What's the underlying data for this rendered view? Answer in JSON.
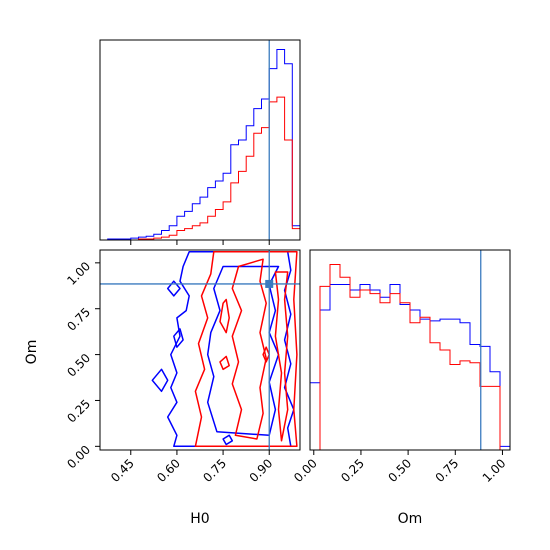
{
  "chart_data": {
    "type": "corner",
    "truth": {
      "H0": 0.9,
      "Om": 0.885
    },
    "truth_color": "#3b7bbf",
    "series_colors": [
      "#0000ff",
      "#ff0000"
    ],
    "panels": {
      "hist_H0": {
        "type": "step-histogram",
        "xlabel": "H0",
        "xlim": [
          0.35,
          1.0
        ],
        "ylim": [
          0,
          210
        ],
        "bin_edges": [
          0.35,
          0.375,
          0.4,
          0.425,
          0.45,
          0.475,
          0.5,
          0.525,
          0.55,
          0.575,
          0.6,
          0.625,
          0.65,
          0.675,
          0.7,
          0.725,
          0.75,
          0.775,
          0.8,
          0.825,
          0.85,
          0.875,
          0.9,
          0.925,
          0.95,
          0.975,
          1.0
        ],
        "series": [
          {
            "color": "blue",
            "values": [
              0,
              1,
              1,
              1,
              2,
              3,
              4,
              6,
              10,
              15,
              25,
              30,
              38,
              45,
              55,
              62,
              70,
              100,
              105,
              120,
              138,
              148,
              180,
              200,
              185,
              15
            ]
          },
          {
            "color": "red",
            "values": [
              0,
              0,
              0,
              0,
              0,
              1,
              1,
              2,
              3,
              5,
              10,
              12,
              15,
              18,
              25,
              32,
              40,
              60,
              72,
              88,
              112,
              118,
              145,
              150,
              105,
              12
            ]
          }
        ]
      },
      "hist_Om": {
        "type": "step-histogram",
        "xlabel": "Om",
        "xlim": [
          -0.02,
          1.04
        ],
        "xticks": [
          "0.00",
          "0.25",
          "0.50",
          "0.75",
          "1.00"
        ],
        "ylim": [
          0,
          1.1
        ],
        "bin_edges": [
          -0.02,
          0.033,
          0.086,
          0.139,
          0.192,
          0.245,
          0.298,
          0.351,
          0.404,
          0.457,
          0.51,
          0.563,
          0.616,
          0.669,
          0.722,
          0.775,
          0.828,
          0.881,
          0.934,
          0.987,
          1.04
        ],
        "series": [
          {
            "color": "blue",
            "values": [
              0.37,
              0.77,
              0.91,
              0.91,
              0.88,
              0.91,
              0.88,
              0.84,
              0.91,
              0.8,
              0.77,
              0.72,
              0.71,
              0.72,
              0.72,
              0.7,
              0.58,
              0.57,
              0.43,
              0.02
            ]
          },
          {
            "color": "red",
            "values": [
              0.0,
              0.9,
              1.02,
              0.95,
              0.84,
              0.88,
              0.86,
              0.81,
              0.86,
              0.81,
              0.7,
              0.73,
              0.59,
              0.55,
              0.47,
              0.49,
              0.48,
              0.35,
              0.35,
              0.0
            ]
          }
        ]
      },
      "contour_H0_Om": {
        "type": "contour",
        "xlabel": "H0",
        "ylabel": "Om",
        "xlim": [
          0.35,
          1.0
        ],
        "ylim": [
          -0.02,
          1.07
        ],
        "xticks": [
          "0.45",
          "0.60",
          "0.75",
          "0.90"
        ],
        "yticks": [
          "0.00",
          "0.25",
          "0.50",
          "0.75",
          "1.00"
        ],
        "series": [
          {
            "color": "blue",
            "contours": [
              [
                [
                  0.64,
                  1.06
                ],
                [
                  0.62,
                  0.98
                ],
                [
                  0.61,
                  0.9
                ],
                [
                  0.64,
                  0.82
                ],
                [
                  0.63,
                  0.74
                ],
                [
                  0.6,
                  0.7
                ],
                [
                  0.61,
                  0.6
                ],
                [
                  0.58,
                  0.5
                ],
                [
                  0.6,
                  0.4
                ],
                [
                  0.58,
                  0.32
                ],
                [
                  0.6,
                  0.24
                ],
                [
                  0.57,
                  0.16
                ],
                [
                  0.6,
                  0.06
                ],
                [
                  0.59,
                  0.0
                ],
                [
                  0.97,
                  0.0
                ],
                [
                  0.96,
                  0.1
                ],
                [
                  0.98,
                  0.2
                ],
                [
                  0.95,
                  0.32
                ],
                [
                  0.97,
                  0.45
                ],
                [
                  0.95,
                  0.58
                ],
                [
                  0.97,
                  0.72
                ],
                [
                  0.95,
                  0.85
                ],
                [
                  0.97,
                  0.96
                ],
                [
                  0.96,
                  1.06
                ]
              ],
              [
                [
                  0.75,
                  0.98
                ],
                [
                  0.72,
                  0.86
                ],
                [
                  0.74,
                  0.74
                ],
                [
                  0.71,
                  0.62
                ],
                [
                  0.7,
                  0.5
                ],
                [
                  0.72,
                  0.38
                ],
                [
                  0.7,
                  0.24
                ],
                [
                  0.73,
                  0.08
                ],
                [
                  0.9,
                  0.06
                ],
                [
                  0.92,
                  0.2
                ],
                [
                  0.9,
                  0.35
                ],
                [
                  0.93,
                  0.5
                ],
                [
                  0.9,
                  0.62
                ],
                [
                  0.92,
                  0.74
                ],
                [
                  0.9,
                  0.88
                ],
                [
                  0.93,
                  0.98
                ]
              ],
              [
                [
                  0.52,
                  0.36
                ],
                [
                  0.55,
                  0.42
                ],
                [
                  0.57,
                  0.36
                ],
                [
                  0.55,
                  0.3
                ]
              ],
              [
                [
                  0.59,
                  0.6
                ],
                [
                  0.61,
                  0.64
                ],
                [
                  0.62,
                  0.58
                ],
                [
                  0.6,
                  0.54
                ]
              ],
              [
                [
                  0.57,
                  0.86
                ],
                [
                  0.59,
                  0.9
                ],
                [
                  0.61,
                  0.86
                ],
                [
                  0.59,
                  0.82
                ]
              ],
              [
                [
                  0.75,
                  0.04
                ],
                [
                  0.77,
                  0.06
                ],
                [
                  0.78,
                  0.03
                ],
                [
                  0.76,
                  0.01
                ]
              ]
            ]
          },
          {
            "color": "red",
            "contours": [
              [
                [
                  0.72,
                  1.06
                ],
                [
                  0.71,
                  0.94
                ],
                [
                  0.68,
                  0.82
                ],
                [
                  0.7,
                  0.7
                ],
                [
                  0.67,
                  0.56
                ],
                [
                  0.69,
                  0.42
                ],
                [
                  0.66,
                  0.3
                ],
                [
                  0.68,
                  0.16
                ],
                [
                  0.66,
                  0.0
                ],
                [
                  0.99,
                  0.0
                ],
                [
                  0.98,
                  0.2
                ],
                [
                  0.99,
                  0.5
                ],
                [
                  0.98,
                  0.8
                ],
                [
                  0.99,
                  1.06
                ]
              ],
              [
                [
                  0.8,
                  0.98
                ],
                [
                  0.78,
                  0.86
                ],
                [
                  0.81,
                  0.74
                ],
                [
                  0.78,
                  0.6
                ],
                [
                  0.8,
                  0.46
                ],
                [
                  0.78,
                  0.34
                ],
                [
                  0.81,
                  0.2
                ],
                [
                  0.79,
                  0.06
                ],
                [
                  0.86,
                  0.04
                ],
                [
                  0.88,
                  0.18
                ],
                [
                  0.87,
                  0.32
                ],
                [
                  0.89,
                  0.48
                ],
                [
                  0.87,
                  0.62
                ],
                [
                  0.89,
                  0.78
                ],
                [
                  0.87,
                  0.9
                ],
                [
                  0.88,
                  1.02
                ]
              ],
              [
                [
                  0.75,
                  0.78
                ],
                [
                  0.74,
                  0.68
                ],
                [
                  0.76,
                  0.62
                ],
                [
                  0.77,
                  0.7
                ],
                [
                  0.76,
                  0.8
                ]
              ],
              [
                [
                  0.92,
                  0.95
                ],
                [
                  0.93,
                  0.8
                ],
                [
                  0.92,
                  0.6
                ],
                [
                  0.94,
                  0.4
                ],
                [
                  0.93,
                  0.2
                ],
                [
                  0.94,
                  0.03
                ],
                [
                  0.96,
                  0.2
                ],
                [
                  0.95,
                  0.4
                ],
                [
                  0.96,
                  0.6
                ],
                [
                  0.95,
                  0.8
                ],
                [
                  0.96,
                  0.95
                ]
              ],
              [
                [
                  0.74,
                  0.46
                ],
                [
                  0.76,
                  0.49
                ],
                [
                  0.77,
                  0.44
                ],
                [
                  0.75,
                  0.42
                ]
              ],
              [
                [
                  0.88,
                  0.5
                ],
                [
                  0.89,
                  0.54
                ],
                [
                  0.9,
                  0.5
                ],
                [
                  0.89,
                  0.46
                ]
              ]
            ]
          }
        ]
      }
    }
  }
}
